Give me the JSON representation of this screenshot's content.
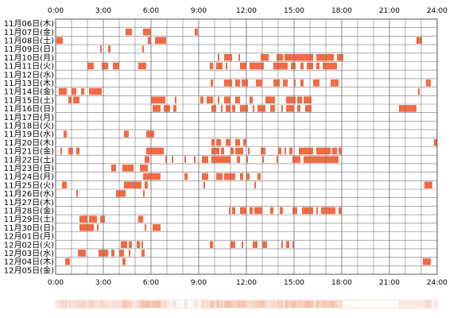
{
  "chart_data": {
    "type": "heatmap",
    "x_ticks": [
      "0:00",
      "3:00",
      "6:00",
      "9:00",
      "12:00",
      "15:00",
      "18:00",
      "21:00",
      "24:00"
    ],
    "x_range_hours": [
      0,
      24
    ],
    "grid": true,
    "colors": {
      "bar": "#f26a43",
      "grid": "#7a7a7a",
      "summary_hot": "#f5b89e",
      "summary_cool": "#fde8dd"
    },
    "rows": [
      {
        "label": "11月06日(木)",
        "segments": []
      },
      {
        "label": "11月07日(金)",
        "segments": [
          [
            4.4,
            4.8
          ],
          [
            5.5,
            6.0
          ],
          [
            8.75,
            8.95
          ]
        ]
      },
      {
        "label": "11月08日(土)",
        "segments": [
          [
            0.05,
            0.45
          ],
          [
            5.8,
            6.0
          ],
          [
            6.25,
            6.95
          ],
          [
            22.7,
            23.05
          ]
        ]
      },
      {
        "label": "11月09日(日)",
        "segments": [
          [
            2.8,
            2.9
          ],
          [
            3.3,
            3.45
          ],
          [
            5.45,
            5.55
          ]
        ]
      },
      {
        "label": "11月10日(月)",
        "segments": [
          [
            10.2,
            10.3
          ],
          [
            10.6,
            11.1
          ],
          [
            11.5,
            11.6
          ],
          [
            12.9,
            13.4
          ],
          [
            13.9,
            14.3
          ],
          [
            14.4,
            16.2
          ],
          [
            16.4,
            17.5
          ],
          [
            17.7,
            18.1
          ]
        ]
      },
      {
        "label": "11月11日(火)",
        "segments": [
          [
            2.0,
            2.4
          ],
          [
            2.9,
            3.3
          ],
          [
            3.6,
            4.0
          ],
          [
            5.2,
            5.7
          ],
          [
            9.7,
            9.9
          ],
          [
            10.1,
            10.5
          ],
          [
            10.7,
            10.8
          ],
          [
            11.6,
            12.0
          ],
          [
            12.2,
            13.1
          ],
          [
            13.7,
            14.6
          ],
          [
            14.8,
            15.1
          ],
          [
            15.4,
            15.6
          ],
          [
            15.8,
            16.2
          ],
          [
            16.4,
            16.6
          ],
          [
            16.8,
            17.7
          ]
        ]
      },
      {
        "label": "11月12日(水)",
        "segments": []
      },
      {
        "label": "11月13日(木)",
        "segments": [
          [
            9.75,
            9.9
          ],
          [
            10.6,
            11.1
          ],
          [
            11.3,
            11.6
          ],
          [
            11.7,
            12.1
          ],
          [
            12.6,
            13.0
          ],
          [
            13.7,
            14.1
          ],
          [
            14.3,
            14.6
          ],
          [
            15.0,
            15.1
          ],
          [
            15.4,
            15.6
          ],
          [
            16.2,
            16.6
          ],
          [
            17.3,
            17.8
          ],
          [
            23.3,
            23.6
          ]
        ]
      },
      {
        "label": "11月14日(金)",
        "segments": [
          [
            0.2,
            0.7
          ],
          [
            1.0,
            1.3
          ],
          [
            1.6,
            1.8
          ],
          [
            2.1,
            2.9
          ],
          [
            22.8,
            22.9
          ]
        ]
      },
      {
        "label": "11月15日(土)",
        "segments": [
          [
            0.8,
            1.0
          ],
          [
            1.1,
            1.5
          ],
          [
            6.0,
            6.9
          ],
          [
            7.5,
            7.6
          ],
          [
            9.1,
            9.3
          ],
          [
            9.5,
            9.9
          ],
          [
            10.2,
            10.3
          ],
          [
            10.6,
            11.0
          ],
          [
            11.3,
            11.6
          ],
          [
            12.2,
            12.4
          ],
          [
            13.2,
            13.8
          ],
          [
            14.5,
            15.1
          ],
          [
            15.2,
            15.5
          ],
          [
            15.6,
            16.1
          ]
        ]
      },
      {
        "label": "11月16日(日)",
        "segments": [
          [
            6.1,
            6.6
          ],
          [
            6.8,
            7.2
          ],
          [
            7.4,
            7.6
          ],
          [
            9.8,
            10.1
          ],
          [
            10.4,
            10.5
          ],
          [
            10.7,
            11.0
          ],
          [
            11.1,
            11.3
          ],
          [
            11.6,
            12.1
          ],
          [
            12.4,
            12.5
          ],
          [
            12.7,
            13.2
          ],
          [
            13.5,
            13.8
          ],
          [
            14.2,
            14.3
          ],
          [
            14.5,
            15.0
          ],
          [
            15.2,
            15.4
          ],
          [
            15.7,
            16.1
          ],
          [
            21.6,
            22.7
          ]
        ]
      },
      {
        "label": "11月17日(月)",
        "segments": []
      },
      {
        "label": "11月18日(火)",
        "segments": []
      },
      {
        "label": "11月19日(水)",
        "segments": [
          [
            0.5,
            0.7
          ],
          [
            4.3,
            4.6
          ],
          [
            5.7,
            6.2
          ]
        ]
      },
      {
        "label": "11月20日(木)",
        "segments": [
          [
            9.8,
            10.0
          ],
          [
            10.1,
            10.4
          ],
          [
            10.7,
            11.0
          ],
          [
            11.3,
            11.6
          ],
          [
            11.8,
            12.0
          ],
          [
            23.8,
            24.0
          ]
        ]
      },
      {
        "label": "11月21日(金)",
        "segments": [
          [
            0.3,
            0.4
          ],
          [
            0.8,
            1.1
          ],
          [
            1.3,
            1.5
          ],
          [
            5.7,
            6.8
          ],
          [
            9.8,
            10.3
          ],
          [
            10.4,
            10.6
          ],
          [
            11.0,
            11.2
          ],
          [
            11.3,
            11.8
          ],
          [
            12.1,
            12.2
          ],
          [
            12.9,
            13.2
          ],
          [
            14.0,
            14.2
          ],
          [
            14.4,
            14.5
          ],
          [
            14.7,
            14.9
          ],
          [
            15.3,
            16.2
          ],
          [
            16.4,
            17.3
          ],
          [
            17.4,
            17.7
          ],
          [
            17.8,
            18.0
          ]
        ]
      },
      {
        "label": "11月22日(土)",
        "segments": [
          [
            5.6,
            5.9
          ],
          [
            6.9,
            7.0
          ],
          [
            7.3,
            7.4
          ],
          [
            8.1,
            8.2
          ],
          [
            8.7,
            8.8
          ],
          [
            9.2,
            9.6
          ],
          [
            9.8,
            11.0
          ],
          [
            11.4,
            11.6
          ],
          [
            12.0,
            12.1
          ],
          [
            13.0,
            13.1
          ],
          [
            13.9,
            14.0
          ],
          [
            14.9,
            15.4
          ],
          [
            15.6,
            17.8
          ]
        ]
      },
      {
        "label": "11月23日(日)",
        "segments": [
          [
            3.5,
            3.8
          ],
          [
            4.2,
            4.9
          ],
          [
            5.3,
            5.8
          ]
        ]
      },
      {
        "label": "11月24日(月)",
        "segments": [
          [
            5.5,
            6.6
          ],
          [
            8.1,
            8.3
          ],
          [
            9.2,
            9.6
          ],
          [
            10.1,
            10.5
          ],
          [
            10.6,
            11.3
          ],
          [
            11.6,
            11.8
          ],
          [
            12.0,
            12.2
          ],
          [
            12.7,
            12.9
          ]
        ]
      },
      {
        "label": "11月25日(火)",
        "segments": [
          [
            0.4,
            0.7
          ],
          [
            4.3,
            5.4
          ],
          [
            5.6,
            5.8
          ],
          [
            9.3,
            9.4
          ],
          [
            12.5,
            12.6
          ],
          [
            23.2,
            23.7
          ]
        ]
      },
      {
        "label": "11月26日(水)",
        "segments": [
          [
            1.3,
            1.4
          ],
          [
            3.8,
            4.4
          ],
          [
            5.5,
            5.6
          ]
        ]
      },
      {
        "label": "11月27日(木)",
        "segments": []
      },
      {
        "label": "11月28日(金)",
        "segments": [
          [
            10.9,
            11.0
          ],
          [
            11.1,
            11.3
          ],
          [
            11.6,
            12.0
          ],
          [
            12.2,
            12.4
          ],
          [
            12.5,
            13.0
          ],
          [
            13.5,
            13.7
          ],
          [
            14.1,
            14.3
          ],
          [
            14.9,
            15.2
          ],
          [
            15.5,
            16.2
          ],
          [
            16.4,
            16.5
          ],
          [
            16.7,
            17.6
          ],
          [
            17.8,
            18.0
          ]
        ]
      },
      {
        "label": "11月29日(土)",
        "segments": [
          [
            1.5,
            2.0
          ],
          [
            2.1,
            2.6
          ],
          [
            2.8,
            3.1
          ],
          [
            5.2,
            5.5
          ]
        ]
      },
      {
        "label": "11月30日(日)",
        "segments": [
          [
            1.5,
            2.4
          ],
          [
            2.6,
            2.7
          ],
          [
            5.6,
            5.7
          ],
          [
            6.1,
            6.6
          ]
        ]
      },
      {
        "label": "12月01日(月)",
        "segments": []
      },
      {
        "label": "12月02日(火)",
        "segments": [
          [
            4.1,
            4.5
          ],
          [
            4.6,
            4.8
          ],
          [
            5.1,
            5.3
          ],
          [
            5.4,
            5.5
          ],
          [
            9.7,
            9.9
          ],
          [
            11.0,
            11.3
          ],
          [
            11.7,
            11.8
          ],
          [
            12.4,
            12.7
          ],
          [
            13.0,
            13.3
          ],
          [
            14.2,
            14.3
          ],
          [
            14.5,
            14.7
          ],
          [
            14.9,
            15.0
          ]
        ]
      },
      {
        "label": "12月03日(水)",
        "segments": [
          [
            1.4,
            1.9
          ],
          [
            2.7,
            3.3
          ],
          [
            3.5,
            3.7
          ],
          [
            4.0,
            4.3
          ],
          [
            4.6,
            4.7
          ],
          [
            5.4,
            5.6
          ]
        ]
      },
      {
        "label": "12月04日(木)",
        "segments": [
          [
            0.6,
            0.9
          ],
          [
            4.2,
            4.4
          ],
          [
            23.1,
            23.6
          ]
        ]
      },
      {
        "label": "12月05日(金)",
        "segments": []
      }
    ],
    "summary_strip": true
  }
}
